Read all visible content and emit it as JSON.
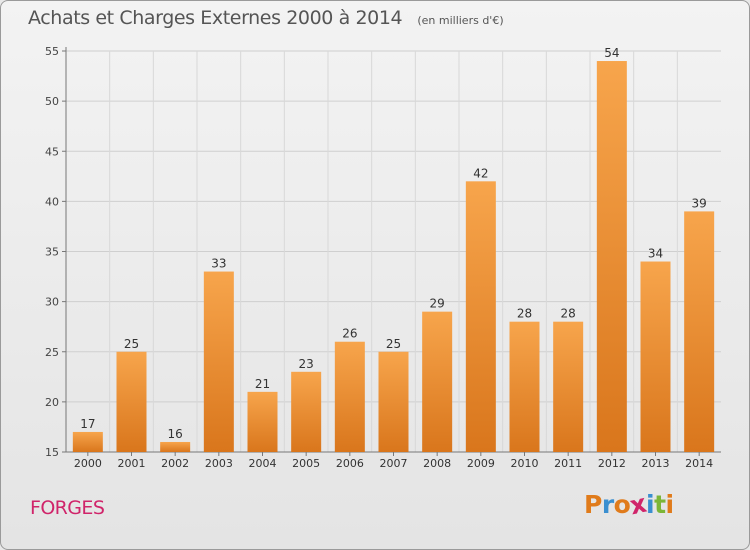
{
  "header": {
    "title": "Achats et Charges Externes 2000 à 2014",
    "subtitle": "(en milliers d'€)"
  },
  "footer": {
    "place_label": "FORGES",
    "logo_text": "Proxiti"
  },
  "colors": {
    "bar_top": "#f7a54c",
    "bar_bottom": "#d9761c",
    "label_red": "#d0246a",
    "logo_letters": [
      "#e07b1b",
      "#3a8fd0",
      "#e07b1b",
      "#d0246a",
      "#3a8fd0",
      "#7cb637",
      "#e07b1b"
    ]
  },
  "chart_data": {
    "type": "bar",
    "title": "Achats et Charges Externes 2000 à 2014",
    "subtitle": "(en milliers d'€)",
    "categories": [
      "2000",
      "2001",
      "2002",
      "2003",
      "2004",
      "2005",
      "2006",
      "2007",
      "2008",
      "2009",
      "2010",
      "2011",
      "2012",
      "2013",
      "2014"
    ],
    "values": [
      17,
      25,
      16,
      33,
      21,
      23,
      26,
      25,
      29,
      42,
      28,
      28,
      54,
      34,
      39
    ],
    "ylim": [
      15,
      55
    ],
    "yticks": [
      15,
      20,
      25,
      30,
      35,
      40,
      45,
      50,
      55
    ],
    "grid": true,
    "data_labels": true
  }
}
